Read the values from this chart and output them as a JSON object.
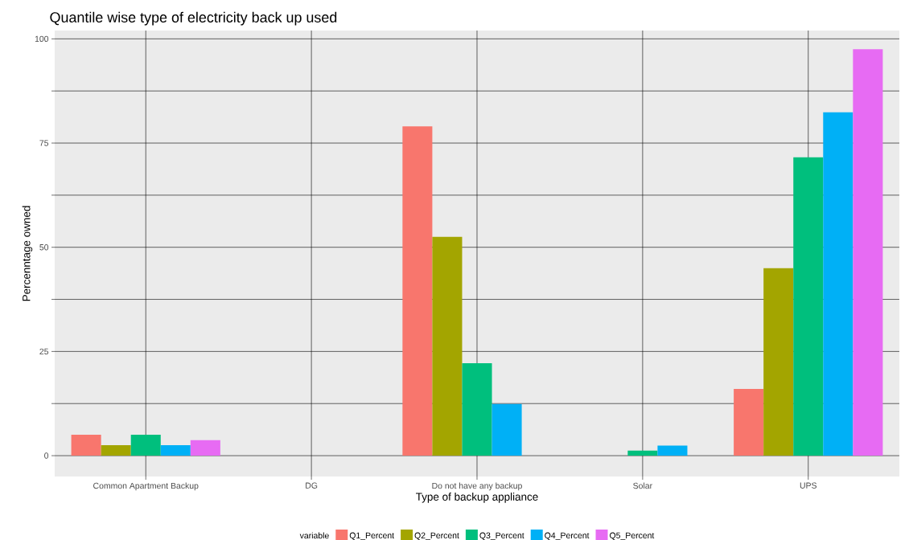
{
  "chart_data": {
    "type": "bar",
    "title": "Quantile wise type of electricity back up used",
    "xlabel": "Type of backup appliance",
    "ylabel": "Percenntage owned",
    "legend_title": "variable",
    "categories": [
      "Common Apartment Backup",
      "DG",
      "Do not have any backup",
      "Solar",
      "UPS"
    ],
    "series": [
      {
        "name": "Q1_Percent",
        "color": "#f8766d",
        "values": [
          5,
          0,
          79,
          0,
          16
        ]
      },
      {
        "name": "Q2_Percent",
        "color": "#a3a500",
        "values": [
          2.5,
          0,
          52.5,
          0,
          45
        ]
      },
      {
        "name": "Q3_Percent",
        "color": "#00bf7d",
        "values": [
          5,
          0,
          22.2,
          1.2,
          71.6
        ]
      },
      {
        "name": "Q4_Percent",
        "color": "#00b0f6",
        "values": [
          2.5,
          0,
          12.4,
          2.4,
          82.4
        ]
      },
      {
        "name": "Q5_Percent",
        "color": "#e76bf3",
        "values": [
          3.7,
          0,
          0,
          0,
          97.5
        ]
      }
    ],
    "ylim": [
      -5,
      102
    ],
    "yticks": [
      0,
      {
        "value": 12.5,
        "label": null
      },
      25,
      {
        "value": 37.5,
        "label": null
      },
      50,
      {
        "value": 62.5,
        "label": null
      },
      75,
      {
        "value": 87.5,
        "label": null
      },
      100
    ],
    "grid": true,
    "legend": "bottom"
  }
}
